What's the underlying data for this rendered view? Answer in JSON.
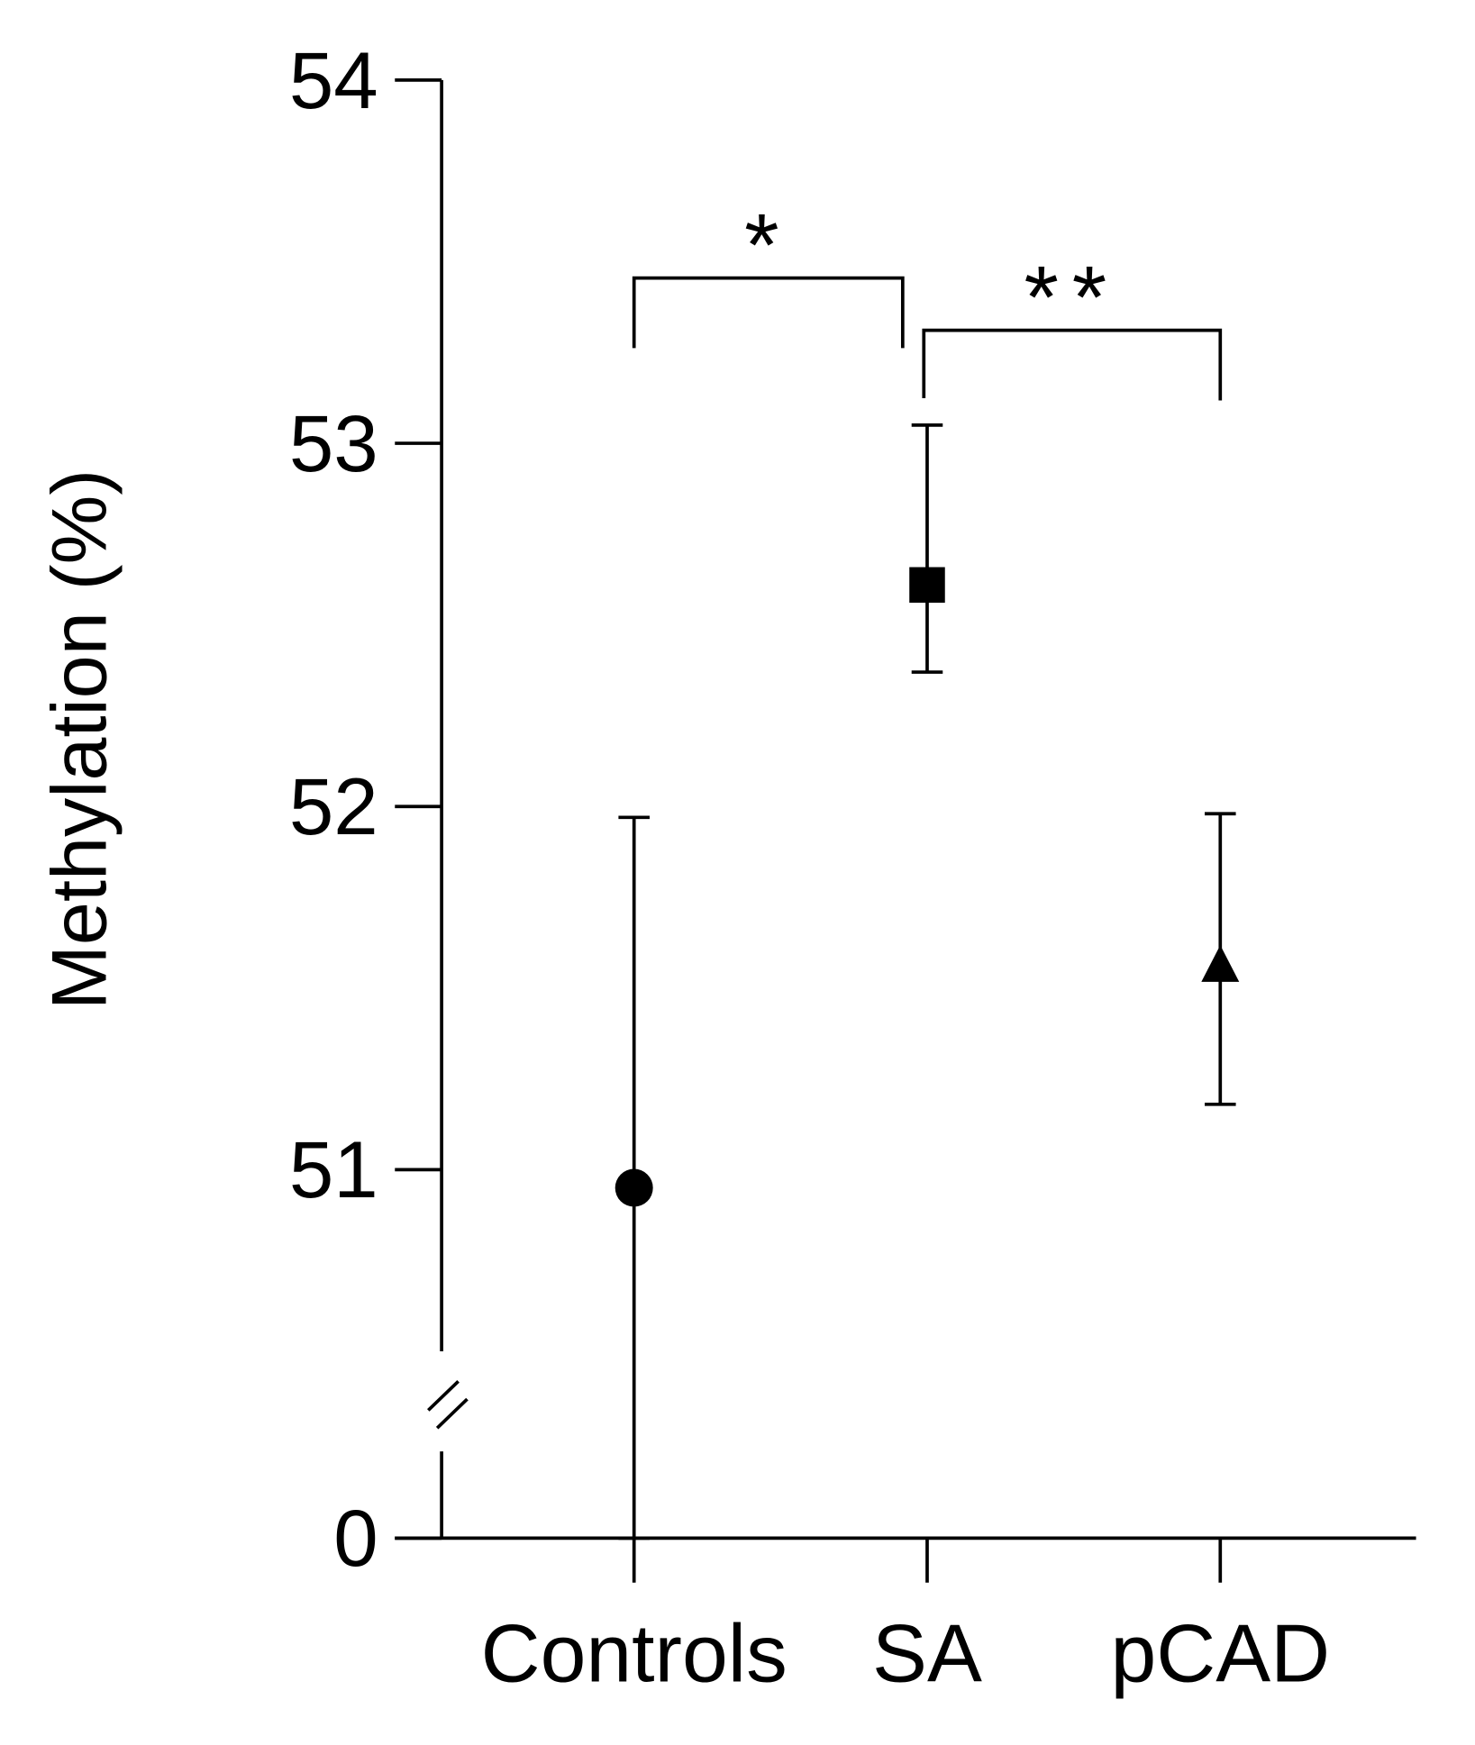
{
  "chart_data": {
    "type": "errorpoint",
    "y_label": "Methylation (%)",
    "categories": [
      "Controls",
      "SA",
      "pCAD"
    ],
    "values": [
      50.95,
      52.61,
      51.56
    ],
    "error_low": [
      50.45,
      52.37,
      51.18
    ],
    "error_high": [
      51.97,
      53.05,
      51.98
    ],
    "markers": [
      "circle",
      "square",
      "triangle"
    ],
    "color": "#000000",
    "ylim": [
      50.5,
      54
    ],
    "yticks": [
      0,
      51,
      52,
      53,
      54
    ],
    "axis_break": true,
    "annotations": [
      {
        "from": 0,
        "to": 1,
        "label": "*"
      },
      {
        "from": 1,
        "to": 2,
        "label": "**"
      }
    ]
  }
}
